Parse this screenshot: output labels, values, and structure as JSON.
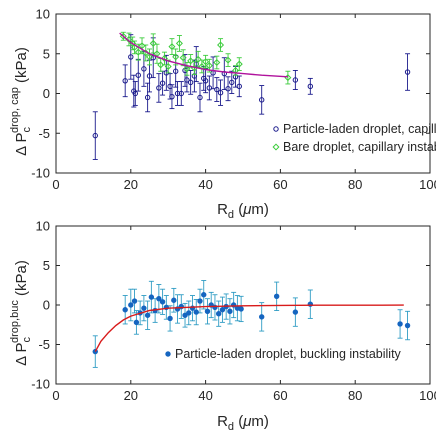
{
  "figure": {
    "background": "#ffffff",
    "axis_color": "#262626"
  },
  "chart_data": [
    {
      "type": "scatter",
      "panel": "top",
      "xlim": [
        0,
        100
      ],
      "ylim": [
        -10,
        10
      ],
      "xticks": [
        0,
        20,
        40,
        60,
        80,
        100
      ],
      "yticks": [
        -10,
        -5,
        0,
        5,
        10
      ],
      "xlabel_main": "R",
      "xlabel_sub": "d",
      "xlabel_tail": " (",
      "xlabel_mu": "μ",
      "xlabel_unit": "m)",
      "ylabel_main": "Δ P",
      "ylabel_sub": "c",
      "ylabel_sup": "drop, cap",
      "ylabel_tail": " (kPa)",
      "grid": false,
      "legend_position": "bottom-right",
      "series": [
        {
          "name": "Particle-laden droplet, capillary instability",
          "marker": "open-circle",
          "color": "#1a1a8c",
          "points": [
            [
              10.5,
              -5.3,
              3.0
            ],
            [
              18.5,
              1.6,
              2.0
            ],
            [
              20,
              4.6,
              2.8
            ],
            [
              20.8,
              0.3,
              2.0
            ],
            [
              21.2,
              0,
              1.5
            ],
            [
              22,
              2.3,
              2.0
            ],
            [
              23.5,
              3.1,
              2.2
            ],
            [
              24.5,
              -0.5,
              1.8
            ],
            [
              25,
              2.2,
              2.0
            ],
            [
              26,
              4.5,
              2.5
            ],
            [
              27.5,
              0.7,
              1.8
            ],
            [
              28.5,
              1.3,
              1.5
            ],
            [
              29.5,
              2.6,
              2.2
            ],
            [
              30.5,
              0.9,
              1.6
            ],
            [
              31,
              -0.4,
              1.5
            ],
            [
              32,
              2.8,
              2.0
            ],
            [
              32.5,
              0,
              1.5
            ],
            [
              33.5,
              0,
              1.5
            ],
            [
              34.5,
              2.9,
              2.0
            ],
            [
              35,
              1.7,
              1.5
            ],
            [
              36,
              1.4,
              1.5
            ],
            [
              37,
              2.2,
              2.0
            ],
            [
              37.5,
              3.7,
              2.2
            ],
            [
              38.5,
              -0.5,
              1.8
            ],
            [
              39.5,
              1.9,
              1.5
            ],
            [
              40,
              1.6,
              1.5
            ],
            [
              41,
              0.7,
              1.5
            ],
            [
              42,
              2.6,
              2.0
            ],
            [
              43,
              0.5,
              1.5
            ],
            [
              44,
              0.1,
              1.6
            ],
            [
              45,
              2.5,
              2.0
            ],
            [
              46,
              0.6,
              1.5
            ],
            [
              47,
              1.4,
              1.4
            ],
            [
              48,
              2.1,
              1.3
            ],
            [
              49,
              0.9,
              1.3
            ],
            [
              55,
              -0.8,
              1.8
            ],
            [
              64,
              1.7,
              1.2
            ],
            [
              68,
              0.9,
              1.0
            ],
            [
              94,
              2.7,
              2.3
            ]
          ]
        },
        {
          "name": "Bare droplet, capillary instability",
          "marker": "open-diamond",
          "color": "#3ccc3c",
          "points": [
            [
              18,
              7.2,
              0.5
            ],
            [
              19.5,
              6.8,
              0.8
            ],
            [
              20.5,
              6.3,
              0.8
            ],
            [
              21,
              5.8,
              0.8
            ],
            [
              22,
              5.2,
              1.0
            ],
            [
              23,
              6.0,
              1.0
            ],
            [
              24,
              5.1,
              1.0
            ],
            [
              25,
              4.6,
              1.0
            ],
            [
              26,
              6.3,
              1.2
            ],
            [
              27,
              5.0,
              1.2
            ],
            [
              28,
              3.6,
              0.8
            ],
            [
              29,
              4.4,
              0.8
            ],
            [
              30,
              3.4,
              0.8
            ],
            [
              31,
              5.9,
              1.0
            ],
            [
              32,
              4.6,
              1.0
            ],
            [
              33,
              6.3,
              1.0
            ],
            [
              34,
              4.5,
              1.0
            ],
            [
              35,
              3.1,
              0.8
            ],
            [
              36,
              4.1,
              0.8
            ],
            [
              37,
              3.2,
              0.8
            ],
            [
              38,
              4.3,
              1.0
            ],
            [
              39,
              3.4,
              0.8
            ],
            [
              40,
              4.0,
              0.8
            ],
            [
              41,
              3.5,
              0.8
            ],
            [
              43,
              3.9,
              0.8
            ],
            [
              44,
              6.1,
              0.8
            ],
            [
              46,
              4.2,
              0.8
            ],
            [
              48,
              2.9,
              0.6
            ],
            [
              49,
              3.7,
              0.8
            ],
            [
              62,
              2.0,
              0.8
            ]
          ]
        },
        {
          "name": "",
          "kind": "fit-line",
          "color": "#b0129c",
          "points": [
            [
              17,
              7.6
            ],
            [
              20,
              6.4
            ],
            [
              25,
              5.0
            ],
            [
              30,
              4.1
            ],
            [
              35,
              3.5
            ],
            [
              40,
              3.0
            ],
            [
              45,
              2.7
            ],
            [
              50,
              2.5
            ],
            [
              55,
              2.3
            ],
            [
              62,
              2.1
            ]
          ]
        }
      ]
    },
    {
      "type": "scatter",
      "panel": "bottom",
      "xlim": [
        0,
        100
      ],
      "ylim": [
        -10,
        10
      ],
      "xticks": [
        0,
        20,
        40,
        60,
        80,
        100
      ],
      "yticks": [
        -10,
        -5,
        0,
        5,
        10
      ],
      "xlabel_main": "R",
      "xlabel_sub": "d",
      "xlabel_tail": " (",
      "xlabel_mu": "μ",
      "xlabel_unit": "m)",
      "ylabel_main": "Δ P",
      "ylabel_sub": "c",
      "ylabel_sup": "drop,buc",
      "ylabel_tail": " (kPa)",
      "grid": false,
      "legend_position": "bottom-right",
      "series": [
        {
          "name": "Particle-laden droplet, buckling instability",
          "marker": "filled-circle",
          "color": "#1565c0",
          "errcolor": "#2f9cc4",
          "points": [
            [
              10.5,
              -5.9,
              2.0
            ],
            [
              18.5,
              -0.6,
              1.8
            ],
            [
              20,
              0,
              2.0
            ],
            [
              21,
              0.5,
              1.5
            ],
            [
              21.5,
              -2.2,
              1.5
            ],
            [
              22.5,
              -1.0,
              1.5
            ],
            [
              23.5,
              -0.4,
              1.6
            ],
            [
              24.5,
              -1.3,
              1.8
            ],
            [
              25.5,
              1.0,
              2.0
            ],
            [
              26.5,
              -0.7,
              1.5
            ],
            [
              27.5,
              0.8,
              1.8
            ],
            [
              28.5,
              0.4,
              1.6
            ],
            [
              29.5,
              -0.3,
              1.5
            ],
            [
              30.5,
              -1.7,
              1.6
            ],
            [
              31.5,
              0.6,
              1.5
            ],
            [
              32.5,
              -0.5,
              1.8
            ],
            [
              33.5,
              -0.2,
              1.5
            ],
            [
              34.5,
              -1.3,
              1.5
            ],
            [
              35.5,
              -1.0,
              1.5
            ],
            [
              36.5,
              -0.4,
              1.6
            ],
            [
              37.5,
              -0.9,
              1.6
            ],
            [
              38.5,
              0.5,
              1.5
            ],
            [
              39.5,
              1.3,
              1.8
            ],
            [
              40.5,
              -0.8,
              1.6
            ],
            [
              41.5,
              0,
              1.6
            ],
            [
              42.5,
              -0.3,
              1.6
            ],
            [
              43.5,
              -1.1,
              1.6
            ],
            [
              44.5,
              -0.6,
              1.6
            ],
            [
              45.5,
              -0.2,
              1.6
            ],
            [
              46.5,
              -0.8,
              1.6
            ],
            [
              47.5,
              0,
              1.6
            ],
            [
              48.5,
              -0.4,
              1.6
            ],
            [
              49.5,
              -0.5,
              1.6
            ],
            [
              55,
              -1.5,
              1.8
            ],
            [
              59,
              1.1,
              1.8
            ],
            [
              64,
              -0.9,
              1.8
            ],
            [
              68,
              0.1,
              1.8
            ],
            [
              92,
              -2.4,
              1.8
            ],
            [
              94,
              -2.6,
              1.8
            ]
          ]
        },
        {
          "name": "",
          "kind": "fit-line",
          "color": "#d81b1b",
          "points": [
            [
              10.5,
              -5.9
            ],
            [
              12,
              -4.6
            ],
            [
              14,
              -3.5
            ],
            [
              16,
              -2.6
            ],
            [
              18,
              -1.9
            ],
            [
              20,
              -1.4
            ],
            [
              25,
              -0.7
            ],
            [
              30,
              -0.4
            ],
            [
              40,
              -0.2
            ],
            [
              50,
              -0.1
            ],
            [
              60,
              -0.05
            ],
            [
              70,
              -0.03
            ],
            [
              80,
              -0.02
            ],
            [
              93,
              -0.01
            ]
          ]
        }
      ]
    }
  ]
}
